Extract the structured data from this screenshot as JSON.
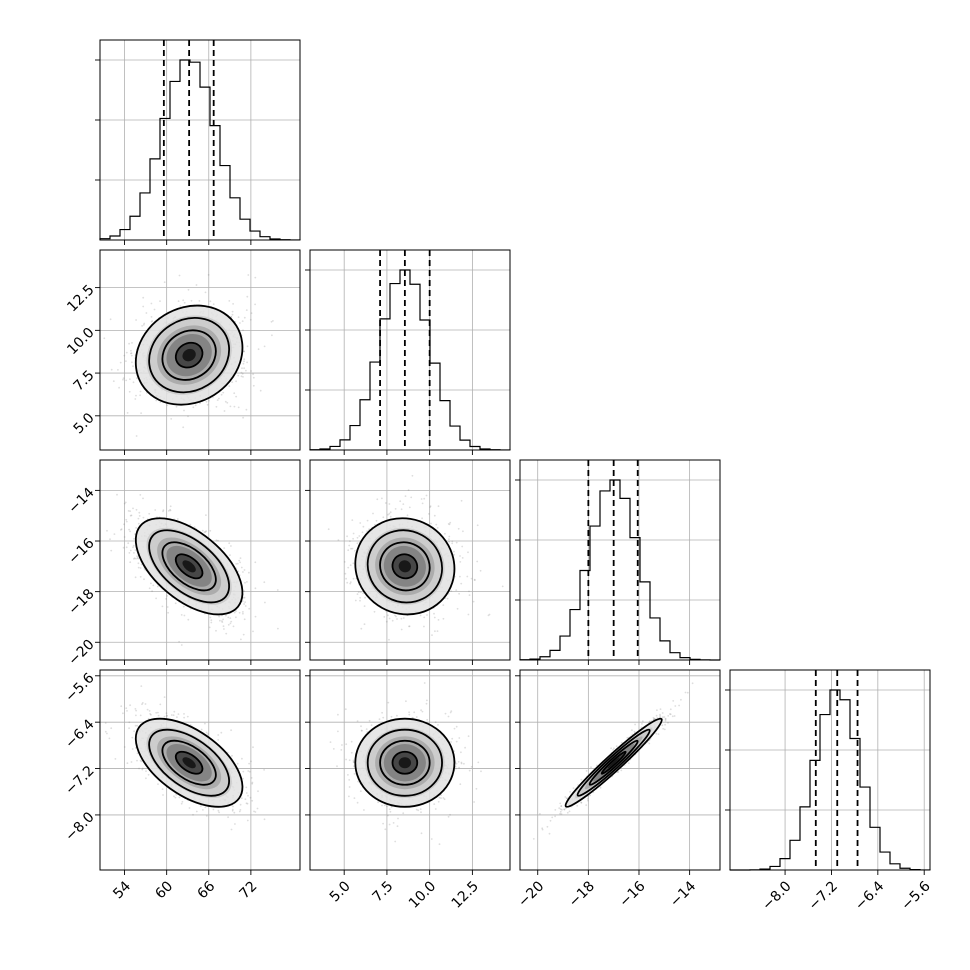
{
  "chart_data": {
    "type": "corner",
    "grid": true,
    "parameters": [
      {
        "range": [
          50.5,
          79
        ],
        "mean": 63.2,
        "std": 3.8,
        "quantiles": [
          59.6,
          63.2,
          66.7
        ],
        "ticks": [
          54,
          60,
          66,
          72
        ],
        "tick_labels": [
          "54",
          "60",
          "66",
          "72"
        ],
        "hist_peak_fraction": 0.076
      },
      {
        "range": [
          3.0,
          14.7
        ],
        "mean": 8.55,
        "std": 1.45,
        "quantiles": [
          7.1,
          8.55,
          10.0
        ],
        "ticks": [
          5.0,
          7.5,
          10.0,
          12.5
        ],
        "tick_labels": [
          "5.0",
          "7.5",
          "10.0",
          "12.5"
        ],
        "hist_peak_fraction": 0.078
      },
      {
        "range": [
          -20.7,
          -12.8
        ],
        "mean": -17.0,
        "std": 0.95,
        "quantiles": [
          -18.0,
          -17.0,
          -16.05
        ],
        "ticks": [
          -20,
          -18,
          -16,
          -14
        ],
        "tick_labels": [
          "−20",
          "−18",
          "−16",
          "−14"
        ],
        "hist_peak_fraction": 0.076
      },
      {
        "range": [
          -8.95,
          -5.5
        ],
        "mean": -7.1,
        "std": 0.38,
        "quantiles": [
          -7.47,
          -7.1,
          -6.75
        ],
        "ticks": [
          -8.0,
          -7.2,
          -6.4,
          -5.6
        ],
        "tick_labels": [
          "−8.0",
          "−7.2",
          "−6.4",
          "−5.6"
        ],
        "hist_peak_fraction": 0.076
      }
    ],
    "correlations": [
      [
        1.0,
        0.15,
        -0.55,
        -0.55
      ],
      [
        0.15,
        1.0,
        -0.05,
        0.0
      ],
      [
        -0.55,
        -0.05,
        1.0,
        0.97
      ],
      [
        -0.55,
        0.0,
        0.97,
        1.0
      ]
    ],
    "contour_levels_sigma": [
      0.5,
      1.0,
      1.5,
      2.0
    ],
    "colors": {
      "ink": "#000000",
      "grid": "#b0b0b0",
      "scatter": "#7a7a7a"
    }
  }
}
